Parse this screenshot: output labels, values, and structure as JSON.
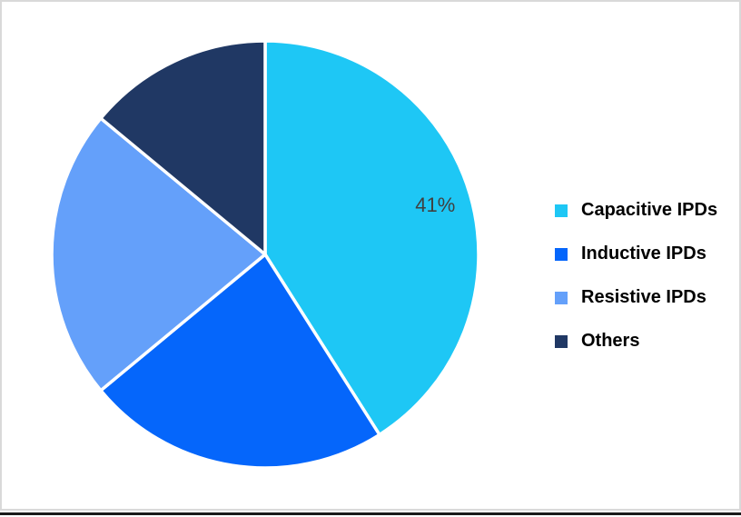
{
  "frame": {
    "background_color": "#ffffff",
    "border_color": "#d9d9d9",
    "bottom_rule_color": "#1a1a1a"
  },
  "chart_data": {
    "type": "pie",
    "title": "",
    "legend_position": "right",
    "start_angle_deg": 0,
    "direction": "clockwise",
    "categories": [
      "Capacitive IPDs",
      "Inductive IPDs",
      "Resistive IPDs",
      "Others"
    ],
    "values": [
      41,
      23,
      22,
      14
    ],
    "slices": [
      {
        "label": "Capacitive IPDs",
        "value_pct": 41,
        "color": "#1EC7F5",
        "data_label": "41%"
      },
      {
        "label": "Inductive IPDs",
        "value_pct": 23,
        "color": "#0566FB",
        "data_label": ""
      },
      {
        "label": "Resistive IPDs",
        "value_pct": 22,
        "color": "#64A0FA",
        "data_label": ""
      },
      {
        "label": "Others",
        "value_pct": 14,
        "color": "#203864",
        "data_label": ""
      }
    ],
    "data_label_color": "#404040",
    "slice_border_color": "#FFFFFF"
  }
}
